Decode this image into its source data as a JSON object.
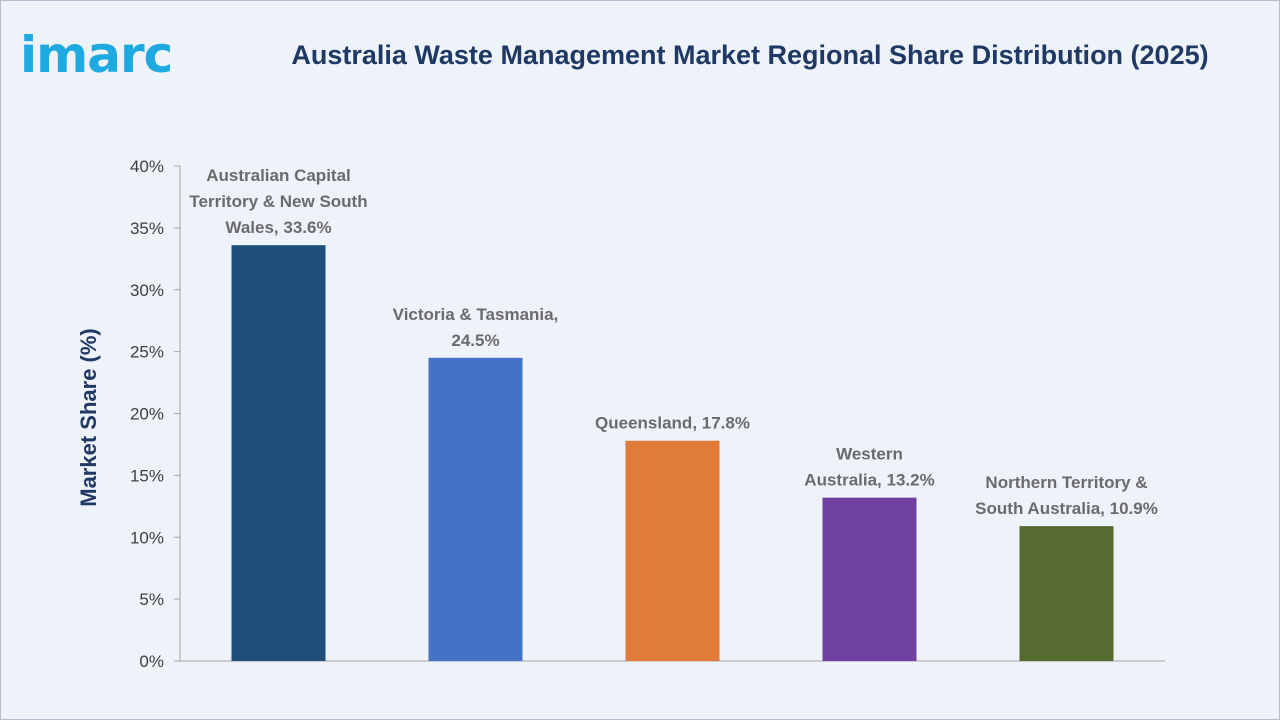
{
  "brand": {
    "logo_text": "imarc",
    "logo_color": "#1fa9e1"
  },
  "header": {
    "title": "Australia Waste Management Market Regional Share Distribution (2025)"
  },
  "chart_data": {
    "type": "bar",
    "title": "Australia Waste Management Market Regional Share Distribution (2025)",
    "xlabel": "",
    "ylabel": "Market Share (%)",
    "ylim": [
      0,
      40
    ],
    "y_ticks": [
      "0%",
      "5%",
      "10%",
      "15%",
      "20%",
      "25%",
      "30%",
      "35%",
      "40%"
    ],
    "y_tick_values": [
      0,
      5,
      10,
      15,
      20,
      25,
      30,
      35,
      40
    ],
    "grid": false,
    "categories": [
      "Australian Capital Territory & New South Wales",
      "Victoria & Tasmania",
      "Queensland",
      "Western Australia",
      "Northern Territory & South Australia"
    ],
    "values": [
      33.6,
      24.5,
      17.8,
      13.2,
      10.9
    ],
    "data_labels": [
      [
        "Australian Capital",
        "Territory & New South",
        "Wales, 33.6%"
      ],
      [
        "Victoria & Tasmania,",
        "24.5%"
      ],
      [
        "Queensland, 17.8%"
      ],
      [
        "Western",
        "Australia, 13.2%"
      ],
      [
        "Northern Territory &",
        "South Australia, 10.9%"
      ]
    ],
    "colors": [
      "#1f4e79",
      "#4472c4",
      "#e07b39",
      "#7040a0",
      "#556b2f"
    ]
  }
}
